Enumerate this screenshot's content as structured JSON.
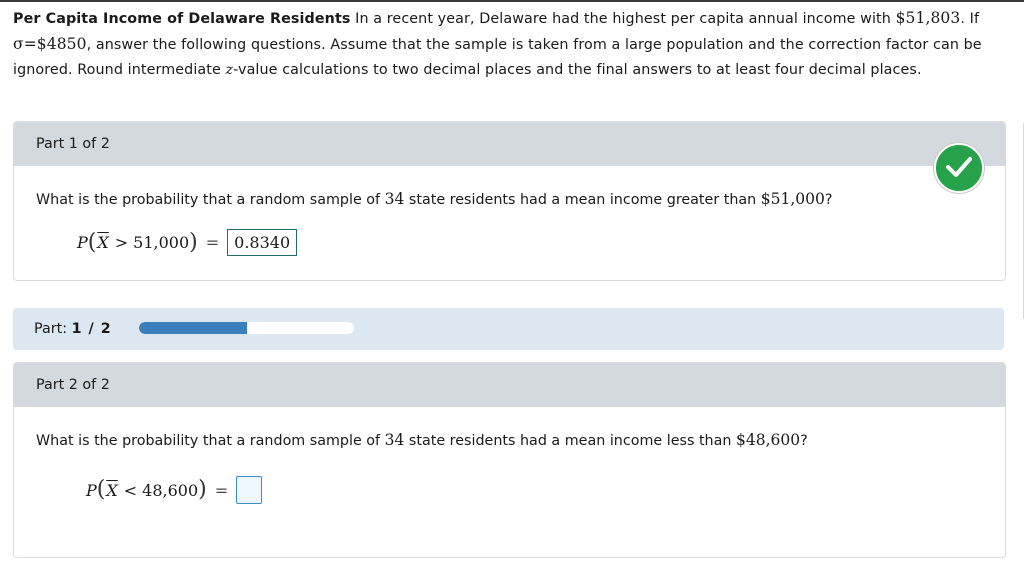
{
  "intro": {
    "title": "Per Capita Income of Delaware Residents",
    "text_1": " In a recent year, Delaware had the highest per capita annual income with ",
    "amount_high": "$51,803",
    "text_2": ". If ",
    "sigma_symbol": "σ",
    "sigma_eq": "=",
    "sigma_value": "$4850",
    "text_3": ", answer the following questions. Assume that the sample is taken from a large population and the correction factor can be ignored. Round intermediate ",
    "z_var": "z",
    "text_4": "-value calculations to two decimal places and the final answers to at least four decimal places."
  },
  "part1": {
    "header": "Part 1 of 2",
    "question_1": "What is the probability that a random sample of ",
    "n": "34",
    "question_2": " state residents had a mean income greater than ",
    "amount": "$51,000",
    "question_3": "?",
    "expr_P": "P",
    "expr_var": "X",
    "expr_op": ">",
    "expr_value": "51,000",
    "expr_eq": "=",
    "answer": "0.8340",
    "status_icon": "checkmark-circle-icon",
    "status_color": "#27a24a"
  },
  "progress": {
    "label": "Part:",
    "value_text": "1 / 2",
    "fraction": 0.5,
    "color": "#3a7fb9"
  },
  "part2": {
    "header": "Part 2 of 2",
    "question_1": "What is the probability that a random sample of ",
    "n": "34",
    "question_2": " state residents had a mean income less than ",
    "amount": "$48,600",
    "question_3": "?",
    "expr_P": "P",
    "expr_var": "X",
    "expr_op": "<",
    "expr_value": "48,600",
    "expr_eq": "=",
    "answer": ""
  }
}
